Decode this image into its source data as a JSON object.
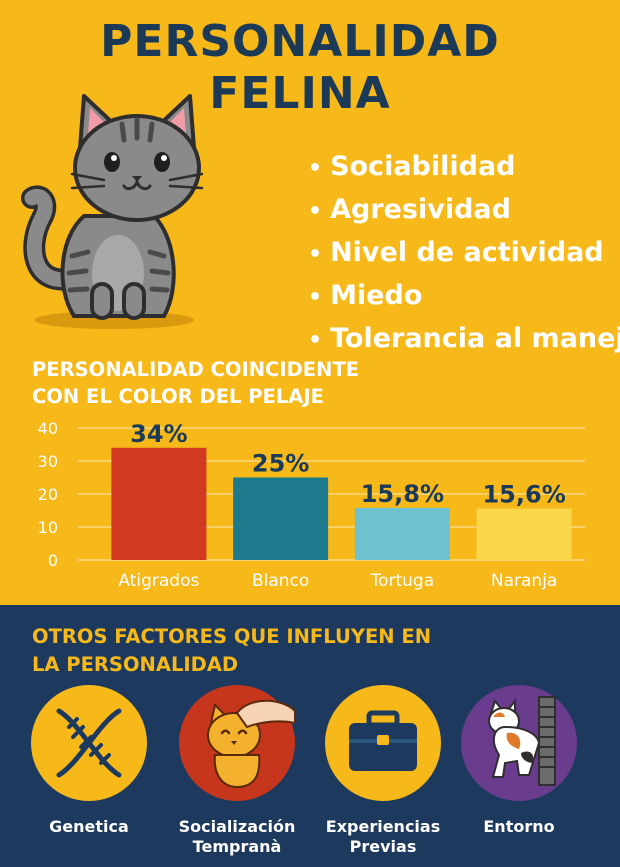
{
  "title_line1": "PERSONALIDAD",
  "title_line2": "FELINA",
  "traits": [
    "Sociabilidad",
    "Agresividad",
    "Nivel de actividad",
    "Miedo",
    "Tolerancia al manejo"
  ],
  "bullet": "•",
  "chart_title_line1": "PERSONALIDAD COINCIDENTE",
  "chart_title_line2": "CON EL COLOR DEL PELAJE",
  "chart_data": {
    "type": "bar",
    "categories": [
      "Atigrados",
      "Blanco",
      "Tortuga",
      "Naranja"
    ],
    "values": [
      34,
      25,
      15.8,
      15.6
    ],
    "value_labels": [
      "34%",
      "25%",
      "15,8%",
      "15,6%"
    ],
    "colors": [
      "#D13A20",
      "#1D7A8C",
      "#6EC1CF",
      "#F9D64A"
    ],
    "yticks": [
      "0",
      "10",
      "20",
      "30",
      "40"
    ],
    "ylim": [
      0,
      40
    ],
    "grid": true
  },
  "factors_title_line1": "OTROS FACTORES QUE INFLUYEN EN",
  "factors_title_line2": "LA PERSONALIDAD",
  "factors": [
    {
      "line1": "Genetica",
      "line2": "",
      "icon": "dna-icon"
    },
    {
      "line1": "Socialización",
      "line2": "Tempranà",
      "icon": "petting-hand-cat-icon"
    },
    {
      "line1": "Experiencias",
      "line2": "Previas",
      "icon": "briefcase-icon"
    },
    {
      "line1": "Entorno",
      "line2": "",
      "icon": "cat-scratching-post-icon"
    }
  ],
  "colors": {
    "yellow": "#F7B819",
    "navy": "#1D3A5E",
    "title": "#1B3A57",
    "white": "#FFFFFF"
  }
}
